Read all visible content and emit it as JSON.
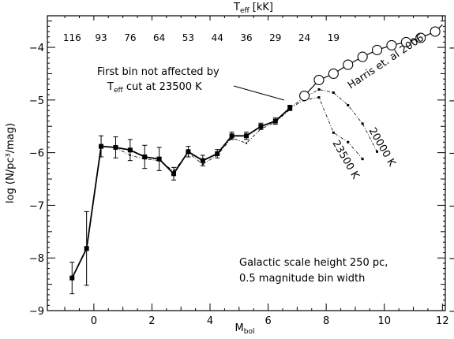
{
  "chart_data": {
    "type": "line",
    "xlabel": "M",
    "xlabel_sub": "bol",
    "ylabel": "log (N/pc³/mag)",
    "top_label": "T",
    "top_label_sub": "eff",
    "top_label_unit": "[kK]",
    "xlim": [
      -1.6,
      12.1
    ],
    "ylim": [
      -9,
      -3.4
    ],
    "x_ticks": [
      0,
      2,
      4,
      6,
      8,
      10,
      12
    ],
    "y_ticks": [
      -9,
      -8,
      -7,
      -6,
      -5,
      -4
    ],
    "x_tick_labels": [
      "0",
      "2",
      "4",
      "6",
      "8",
      "10",
      "12"
    ],
    "y_tick_labels": [
      "−9",
      "−8",
      "−7",
      "−6",
      "−5",
      "−4"
    ],
    "top_ticks": [
      {
        "x": -0.75,
        "label": "116"
      },
      {
        "x": 0.25,
        "label": "93"
      },
      {
        "x": 1.25,
        "label": "76"
      },
      {
        "x": 2.25,
        "label": "64"
      },
      {
        "x": 3.25,
        "label": "53"
      },
      {
        "x": 4.25,
        "label": "44"
      },
      {
        "x": 5.25,
        "label": "36"
      },
      {
        "x": 6.25,
        "label": "29"
      },
      {
        "x": 7.25,
        "label": "24"
      },
      {
        "x": 8.25,
        "label": "19"
      }
    ],
    "series": [
      {
        "style": "solid-squares-errorbars",
        "points": [
          {
            "x": -0.75,
            "y": -8.38,
            "err": 0.3
          },
          {
            "x": -0.25,
            "y": -7.82,
            "err": 0.7
          },
          {
            "x": 0.25,
            "y": -5.88,
            "err": 0.2
          },
          {
            "x": 0.75,
            "y": -5.9,
            "err": 0.2
          },
          {
            "x": 1.25,
            "y": -5.95,
            "err": 0.2
          },
          {
            "x": 1.75,
            "y": -6.08,
            "err": 0.22
          },
          {
            "x": 2.25,
            "y": -6.12,
            "err": 0.22
          },
          {
            "x": 2.75,
            "y": -6.4,
            "err": 0.12
          },
          {
            "x": 3.25,
            "y": -5.98,
            "err": 0.1
          },
          {
            "x": 3.75,
            "y": -6.15,
            "err": 0.1
          },
          {
            "x": 4.25,
            "y": -6.02,
            "err": 0.08
          },
          {
            "x": 4.75,
            "y": -5.68,
            "err": 0.07
          },
          {
            "x": 5.25,
            "y": -5.68,
            "err": 0.07
          },
          {
            "x": 5.75,
            "y": -5.5,
            "err": 0.06
          },
          {
            "x": 6.25,
            "y": -5.4,
            "err": 0.06
          },
          {
            "x": 6.75,
            "y": -5.15,
            "err": 0.05
          }
        ]
      },
      {
        "style": "dotdash-thin",
        "points": [
          {
            "x": 0.25,
            "y": -5.88
          },
          {
            "x": 0.75,
            "y": -5.9
          },
          {
            "x": 1.25,
            "y": -6.05
          },
          {
            "x": 1.75,
            "y": -6.12
          },
          {
            "x": 2.25,
            "y": -6.15
          },
          {
            "x": 2.75,
            "y": -6.35
          },
          {
            "x": 3.25,
            "y": -6.0
          },
          {
            "x": 3.75,
            "y": -6.22
          },
          {
            "x": 4.25,
            "y": -6.05
          },
          {
            "x": 4.75,
            "y": -5.72
          },
          {
            "x": 5.25,
            "y": -5.82
          },
          {
            "x": 5.75,
            "y": -5.55
          },
          {
            "x": 6.25,
            "y": -5.42
          },
          {
            "x": 6.75,
            "y": -5.18
          }
        ]
      },
      {
        "name": "20000 K",
        "style": "dashed-dots",
        "points": [
          {
            "x": 6.75,
            "y": -5.15
          },
          {
            "x": 7.25,
            "y": -4.95
          },
          {
            "x": 7.75,
            "y": -4.8
          },
          {
            "x": 8.25,
            "y": -4.86
          },
          {
            "x": 8.75,
            "y": -5.1
          },
          {
            "x": 9.25,
            "y": -5.45
          },
          {
            "x": 9.75,
            "y": -5.98
          }
        ]
      },
      {
        "name": "23500 K",
        "style": "dashed-dots",
        "points": [
          {
            "x": 6.75,
            "y": -5.15
          },
          {
            "x": 7.25,
            "y": -5.0
          },
          {
            "x": 7.75,
            "y": -4.95
          },
          {
            "x": 8.25,
            "y": -5.62
          },
          {
            "x": 8.75,
            "y": -5.8
          },
          {
            "x": 9.25,
            "y": -6.12
          }
        ]
      },
      {
        "name": "Harris et. al 2006",
        "style": "solid-open-circles",
        "points": [
          {
            "x": 7.25,
            "y": -4.92
          },
          {
            "x": 7.75,
            "y": -4.62
          },
          {
            "x": 8.25,
            "y": -4.5
          },
          {
            "x": 8.75,
            "y": -4.33
          },
          {
            "x": 9.25,
            "y": -4.18
          },
          {
            "x": 9.75,
            "y": -4.05
          },
          {
            "x": 10.25,
            "y": -3.96
          },
          {
            "x": 10.75,
            "y": -3.9
          },
          {
            "x": 11.25,
            "y": -3.82
          },
          {
            "x": 11.75,
            "y": -3.7
          },
          {
            "x": 12.0,
            "y": -3.57
          }
        ]
      }
    ],
    "annotations": {
      "first_bin_line1": "First bin not affected by",
      "first_bin_line2_pre": "T",
      "first_bin_line2_sub": "eff",
      "first_bin_line2_post": " cut at 23500 K",
      "note_line1": "Galactic scale height  250 pc,",
      "note_line2": "0.5 magnitude bin width"
    }
  }
}
